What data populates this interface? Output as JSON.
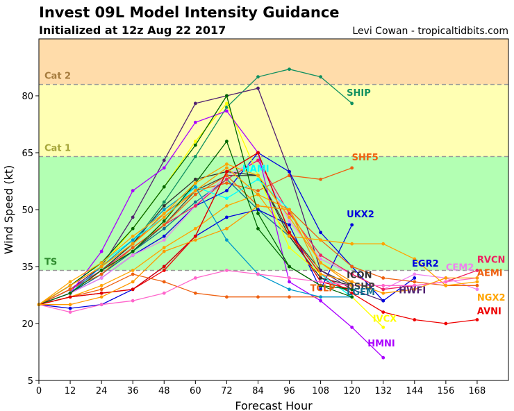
{
  "header": {
    "title": "Invest 09L Model Intensity Guidance",
    "subtitle": "Initialized at 12z Aug 22 2017",
    "credit": "Levi Cowan - tropicaltidbits.com"
  },
  "chart_data": {
    "type": "line",
    "xlabel": "Forecast Hour",
    "ylabel": "Wind Speed (kt)",
    "xlim": [
      0,
      180
    ],
    "ylim": [
      5,
      95
    ],
    "xticks": [
      0,
      12,
      24,
      36,
      48,
      60,
      72,
      84,
      96,
      108,
      120,
      132,
      144,
      156,
      168
    ],
    "yticks": [
      5,
      20,
      35,
      50,
      65,
      80
    ],
    "grid": false,
    "bands": [
      {
        "label": "TS",
        "from": 34,
        "to": 64,
        "color": "#b3ffb3",
        "label_color": "#2e8b2e",
        "line_color": "#999999"
      },
      {
        "label": "Cat 1",
        "from": 64,
        "to": 83,
        "color": "#ffffb3",
        "label_color": "#a6a63a",
        "line_color": "#999999"
      },
      {
        "label": "Cat 2",
        "from": 83,
        "to": 95,
        "color": "#ffdcaa",
        "label_color": "#a57b3d",
        "line_color": "#999999"
      }
    ],
    "series": [
      {
        "name": "SHIP",
        "color": "#109060",
        "x": [
          0,
          12,
          24,
          36,
          48,
          60,
          72,
          84,
          96,
          108,
          120
        ],
        "y": [
          25,
          29,
          34,
          41,
          52,
          64,
          77,
          85,
          87,
          85,
          78
        ],
        "label_at": [
          118,
          80
        ]
      },
      {
        "name": "SHF5",
        "color": "#ee6010",
        "x": [
          0,
          12,
          24,
          36,
          48,
          60,
          72,
          84,
          96,
          108,
          120
        ],
        "y": [
          25,
          30,
          35,
          41,
          49,
          55,
          57,
          55,
          59,
          58,
          61
        ],
        "label_at": [
          120,
          63
        ]
      },
      {
        "name": "DSHP",
        "color": "#404040",
        "x": [
          0,
          12,
          24,
          36,
          48,
          60,
          72,
          84,
          96,
          108,
          120
        ],
        "y": [
          25,
          28,
          33,
          39,
          46,
          55,
          59,
          59,
          44,
          34,
          30
        ],
        "label_at": [
          118,
          29
        ]
      },
      {
        "name": "LGEM",
        "color": "#107090",
        "x": [
          0,
          12,
          24,
          36,
          48,
          60,
          72,
          84,
          96,
          108,
          120
        ],
        "y": [
          25,
          28,
          33,
          39,
          45,
          52,
          58,
          50,
          43,
          32,
          28
        ],
        "label_at": [
          118,
          27.5
        ]
      },
      {
        "name": "UKX2",
        "color": "#0000dd",
        "x": [
          0,
          12,
          24,
          36,
          48,
          60,
          72,
          84,
          96,
          108,
          120
        ],
        "y": [
          25,
          24,
          25,
          29,
          35,
          43,
          48,
          50,
          46,
          29,
          46
        ],
        "label_at": [
          118,
          48
        ]
      },
      {
        "name": "HWFI",
        "color": "#502070",
        "x": [
          0,
          12,
          24,
          36,
          48,
          60,
          72,
          84,
          96,
          108,
          120,
          132
        ],
        "y": [
          25,
          29,
          35,
          48,
          63,
          78,
          80,
          82,
          60,
          34,
          29,
          26
        ],
        "label_at": [
          138,
          28
        ]
      },
      {
        "name": "ICON",
        "color": "#303030",
        "x": [
          0,
          12,
          24,
          36,
          48,
          60,
          72,
          84,
          96,
          108,
          120
        ],
        "y": [
          25,
          29,
          34,
          41,
          51,
          58,
          60,
          59,
          43,
          32,
          30
        ],
        "label_at": [
          118,
          32
        ]
      },
      {
        "name": "EGR2",
        "color": "#0000dd",
        "x": [
          0,
          12,
          24,
          36,
          48,
          60,
          72,
          84,
          96,
          108,
          120,
          132,
          144
        ],
        "y": [
          25,
          28,
          32,
          38,
          43,
          51,
          55,
          65,
          60,
          44,
          35,
          26,
          32
        ],
        "label_at": [
          143,
          35
        ]
      },
      {
        "name": "CEM2",
        "color": "#ee82ee",
        "x": [
          0,
          12,
          24,
          36,
          48,
          60,
          72,
          84,
          96,
          108,
          120,
          132,
          144,
          156,
          168
        ],
        "y": [
          25,
          28,
          32,
          38,
          42,
          51,
          59,
          63,
          47,
          37,
          33,
          29,
          33,
          32,
          29
        ],
        "label_at": [
          156,
          34
        ]
      },
      {
        "name": "RVCN",
        "color": "#ee2060",
        "x": [
          0,
          12,
          24,
          36,
          48,
          60,
          72,
          84,
          96,
          108,
          120,
          132,
          144,
          156,
          168
        ],
        "y": [
          25,
          29,
          34,
          40,
          46,
          51,
          58,
          63,
          49,
          38,
          33,
          29,
          30,
          31,
          34
        ],
        "label_at": [
          168,
          36
        ]
      },
      {
        "name": "AEMI",
        "color": "#ee6010",
        "x": [
          0,
          12,
          24,
          36,
          48,
          60,
          72,
          84,
          96,
          108,
          120,
          132,
          144,
          156,
          168
        ],
        "y": [
          25,
          29,
          33,
          40,
          46,
          54,
          59,
          51,
          50,
          42,
          35,
          32,
          31,
          30,
          30
        ],
        "label_at": [
          168,
          32.5
        ]
      },
      {
        "name": "NGX2",
        "color": "#ffa500",
        "x": [
          0,
          12,
          24,
          36,
          48,
          60,
          72,
          84,
          96,
          108,
          120,
          132,
          144,
          156,
          168
        ],
        "y": [
          25,
          27,
          30,
          34,
          40,
          45,
          51,
          54,
          43,
          42,
          41,
          41,
          37,
          30,
          31
        ],
        "label_at": [
          168,
          26
        ]
      },
      {
        "name": "AVNI",
        "color": "#ee0000",
        "x": [
          0,
          12,
          24,
          36,
          48,
          60,
          72,
          84,
          96,
          108,
          120,
          132,
          144,
          156,
          168
        ],
        "y": [
          25,
          27,
          28,
          29,
          34,
          43,
          60,
          65,
          44,
          33,
          28,
          23,
          21,
          20,
          21
        ],
        "label_at": [
          168,
          22.5
        ]
      },
      {
        "name": "IVCX",
        "color": "#ffff00",
        "x": [
          0,
          12,
          24,
          36,
          48,
          60,
          72,
          84,
          96,
          108,
          120,
          132
        ],
        "y": [
          25,
          30,
          35,
          45,
          56,
          68,
          78,
          59,
          40,
          33,
          27,
          19
        ],
        "label_at": [
          128,
          20.5
        ]
      },
      {
        "name": "HMNI",
        "color": "#aa00ff",
        "x": [
          0,
          12,
          24,
          36,
          48,
          60,
          72,
          84,
          96,
          108,
          120,
          132
        ],
        "y": [
          25,
          28,
          39,
          55,
          61,
          73,
          76,
          65,
          31,
          26,
          19,
          11
        ],
        "label_at": [
          126,
          14
        ]
      },
      {
        "name": "TCLP",
        "color": "#ee6010",
        "x": [
          0,
          12,
          24,
          36,
          48,
          60,
          72,
          84,
          96,
          108,
          120
        ],
        "y": [
          25,
          27,
          29,
          33,
          31,
          28,
          27,
          27,
          27,
          27,
          27
        ],
        "label_at": [
          104,
          28.5
        ]
      },
      {
        "name": "HAMI",
        "color": "#00ffff",
        "x": [
          0,
          12,
          24,
          36,
          48,
          60,
          72,
          84,
          96,
          108,
          120
        ],
        "y": [
          25,
          30,
          36,
          42,
          48,
          56,
          53,
          58,
          50,
          33,
          27
        ],
        "label_at": [
          78,
          60
        ]
      },
      {
        "name": "",
        "color": "#0099cc",
        "x": [
          0,
          12,
          24,
          36,
          48,
          60,
          72,
          84,
          96,
          108,
          120
        ],
        "y": [
          25,
          28,
          35,
          42,
          50,
          56,
          42,
          33,
          29,
          27,
          27
        ],
        "label_at": null
      },
      {
        "name": "",
        "color": "#006600",
        "x": [
          0,
          12,
          24,
          36,
          48,
          60,
          72,
          84,
          96,
          108,
          120
        ],
        "y": [
          25,
          28,
          34,
          39,
          47,
          57,
          68,
          45,
          35,
          30,
          27
        ],
        "label_at": null
      },
      {
        "name": "",
        "color": "#dd0000",
        "x": [
          0,
          12,
          24,
          36,
          48,
          60,
          72,
          84,
          96,
          108,
          120
        ],
        "y": [
          25,
          27,
          28,
          29,
          35,
          43,
          60,
          65,
          44,
          31,
          29
        ],
        "label_at": null
      },
      {
        "name": "",
        "color": "#006600",
        "x": [
          0,
          12,
          24,
          36,
          48,
          60,
          72,
          84,
          96,
          108,
          120
        ],
        "y": [
          25,
          30,
          36,
          45,
          56,
          67,
          80,
          49,
          35,
          30,
          29
        ],
        "label_at": null
      },
      {
        "name": "",
        "color": "#ff66cc",
        "x": [
          0,
          12,
          24,
          36,
          48,
          60,
          72,
          84,
          96,
          108,
          120,
          132,
          144,
          156,
          168
        ],
        "y": [
          25,
          23,
          25,
          26,
          28,
          32,
          34,
          33,
          32,
          31,
          30,
          30,
          30,
          31,
          32
        ],
        "label_at": null
      },
      {
        "name": "",
        "color": "#ff9900",
        "x": [
          0,
          12,
          24,
          36,
          48,
          60,
          72,
          84,
          96,
          108,
          120,
          132,
          144,
          156,
          168
        ],
        "y": [
          25,
          25,
          27,
          31,
          39,
          42,
          45,
          51,
          50,
          36,
          31,
          28,
          29,
          32,
          32
        ],
        "label_at": null
      },
      {
        "name": "",
        "color": "#ff9900",
        "x": [
          0,
          12,
          24,
          36,
          48,
          60,
          72,
          84,
          96,
          108,
          120
        ],
        "y": [
          25,
          30,
          35,
          41,
          48,
          55,
          61,
          54,
          50,
          33,
          31
        ],
        "label_at": null
      },
      {
        "name": "",
        "color": "#ffa500",
        "x": [
          0,
          12,
          24,
          36,
          48,
          60,
          72,
          84,
          96,
          108,
          120
        ],
        "y": [
          25,
          31,
          36,
          43,
          49,
          57,
          62,
          59,
          48,
          36,
          30
        ],
        "label_at": null
      }
    ]
  }
}
